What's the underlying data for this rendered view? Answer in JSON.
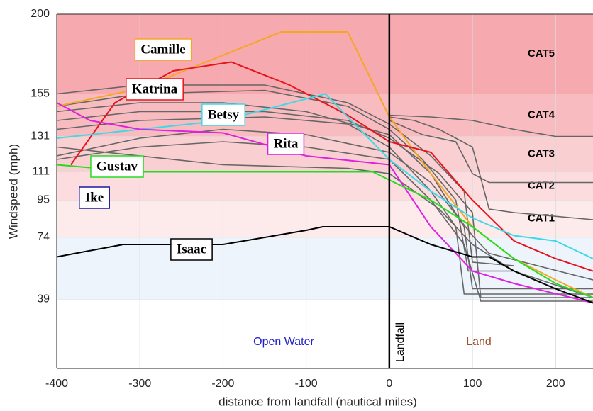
{
  "chart_data": {
    "type": "line",
    "xlabel": "distance from landfall (nautical miles)",
    "ylabel": "Windspeed (mph)",
    "xlim": [
      -400,
      245
    ],
    "ylim": [
      0,
      200
    ],
    "xticks": [
      -400,
      -300,
      -200,
      -100,
      0,
      100,
      200
    ],
    "yticks": [
      39,
      74,
      95,
      111,
      131,
      155,
      200
    ],
    "grid": true,
    "landfall_x": 0,
    "bands": [
      {
        "label": "CAT5",
        "from": 155,
        "to": 200,
        "color": "#f6a9ae"
      },
      {
        "label": "CAT4",
        "from": 131,
        "to": 155,
        "color": "#f8bcc0"
      },
      {
        "label": "CAT3",
        "from": 111,
        "to": 131,
        "color": "#facfd2"
      },
      {
        "label": "CAT2",
        "from": 95,
        "to": 111,
        "color": "#fcdcde"
      },
      {
        "label": "CAT1",
        "from": 74,
        "to": 95,
        "color": "#fdeaeb"
      },
      {
        "from": 39,
        "to": 74,
        "color": "#eef4fb"
      }
    ],
    "annotations": [
      {
        "text": "Open Water",
        "color": "#2222cc"
      },
      {
        "text": "Land",
        "color": "#a0522d"
      },
      {
        "text": "Landfall",
        "color": "#000000"
      },
      {
        "text": "Ike",
        "color": "#1a1aa0"
      }
    ],
    "series": [
      {
        "color": "#666666",
        "x": [
          -400,
          -300,
          -150,
          -50,
          0,
          50,
          90,
          100,
          150
        ],
        "values": [
          155,
          160,
          160,
          150,
          138,
          120,
          100,
          60,
          58
        ]
      },
      {
        "color": "#666666",
        "x": [
          -400,
          -300,
          -150,
          -50,
          0,
          40,
          80,
          95,
          150
        ],
        "values": [
          148,
          155,
          157,
          148,
          135,
          118,
          95,
          55,
          55
        ]
      },
      {
        "color": "#666666",
        "x": [
          -400,
          -300,
          -200,
          -100,
          0,
          50,
          90,
          100,
          245
        ],
        "values": [
          145,
          150,
          150,
          145,
          132,
          110,
          80,
          45,
          45
        ]
      },
      {
        "color": "#666666",
        "x": [
          -400,
          -300,
          -150,
          -50,
          0,
          60,
          100,
          110,
          245
        ],
        "values": [
          140,
          145,
          145,
          140,
          130,
          110,
          88,
          40,
          40
        ]
      },
      {
        "color": "#666666",
        "x": [
          -400,
          -300,
          -150,
          -50,
          0,
          50,
          80,
          90,
          245
        ],
        "values": [
          135,
          140,
          142,
          138,
          125,
          100,
          80,
          42,
          42
        ]
      },
      {
        "color": "#666666",
        "x": [
          -400,
          -300,
          -200,
          -100,
          0,
          50,
          100,
          120,
          245
        ],
        "values": [
          120,
          130,
          135,
          132,
          122,
          105,
          75,
          65,
          50
        ]
      },
      {
        "color": "#666666",
        "x": [
          -400,
          -300,
          -200,
          -100,
          0,
          50,
          90,
          110,
          245
        ],
        "values": [
          118,
          125,
          128,
          125,
          118,
          95,
          70,
          38,
          38
        ]
      },
      {
        "color": "#666666",
        "x": [
          -400,
          -200,
          -50,
          0,
          60,
          100,
          150,
          245
        ],
        "values": [
          125,
          115,
          113,
          110,
          90,
          70,
          55,
          40
        ]
      },
      {
        "color": "#666666",
        "x": [
          0,
          40,
          80,
          100,
          120,
          245
        ],
        "values": [
          140,
          132,
          128,
          110,
          105,
          105
        ]
      },
      {
        "color": "#666666",
        "x": [
          0,
          30,
          60,
          100,
          120,
          150,
          245
        ],
        "values": [
          142,
          140,
          135,
          125,
          90,
          88,
          84
        ]
      },
      {
        "color": "#666666",
        "x": [
          0,
          50,
          100,
          150,
          200,
          245
        ],
        "values": [
          143,
          142,
          140,
          135,
          131,
          131
        ]
      },
      {
        "name": "Camille",
        "color": "#f5a623",
        "x": [
          -400,
          -300,
          -130,
          -50,
          0,
          50,
          100,
          150,
          200,
          245
        ],
        "values": [
          148,
          158,
          190,
          190,
          142,
          110,
          80,
          62,
          50,
          40
        ]
      },
      {
        "name": "Katrina",
        "color": "#e8141c",
        "x": [
          -383,
          -330,
          -260,
          -190,
          -120,
          -50,
          0,
          50,
          100,
          150,
          200,
          245
        ],
        "values": [
          115,
          150,
          168,
          173,
          160,
          143,
          128,
          122,
          95,
          72,
          62,
          55
        ]
      },
      {
        "name": "Betsy",
        "color": "#3dd9e6",
        "x": [
          -400,
          -300,
          -200,
          -77,
          0,
          50,
          100,
          150,
          200,
          245
        ],
        "values": [
          130,
          135,
          140,
          155,
          118,
          100,
          85,
          75,
          72,
          62
        ]
      },
      {
        "name": "Rita",
        "color": "#e020e0",
        "x": [
          -400,
          -360,
          -300,
          -200,
          -100,
          0,
          50,
          100,
          150,
          245
        ],
        "values": [
          150,
          140,
          135,
          133,
          120,
          115,
          80,
          55,
          48,
          37
        ]
      },
      {
        "name": "Gustav",
        "color": "#22dd22",
        "x": [
          -400,
          -300,
          -200,
          -100,
          -20,
          50,
          100,
          150,
          200,
          245
        ],
        "values": [
          115,
          111,
          111,
          111,
          111,
          95,
          80,
          62,
          48,
          40
        ]
      },
      {
        "name": "Isaac",
        "color": "#000000",
        "x": [
          -400,
          -320,
          -200,
          -100,
          -80,
          0,
          50,
          100,
          120,
          150,
          200,
          245
        ],
        "values": [
          63,
          70,
          70,
          78,
          80,
          80,
          70,
          63,
          63,
          55,
          45,
          37
        ]
      }
    ]
  }
}
